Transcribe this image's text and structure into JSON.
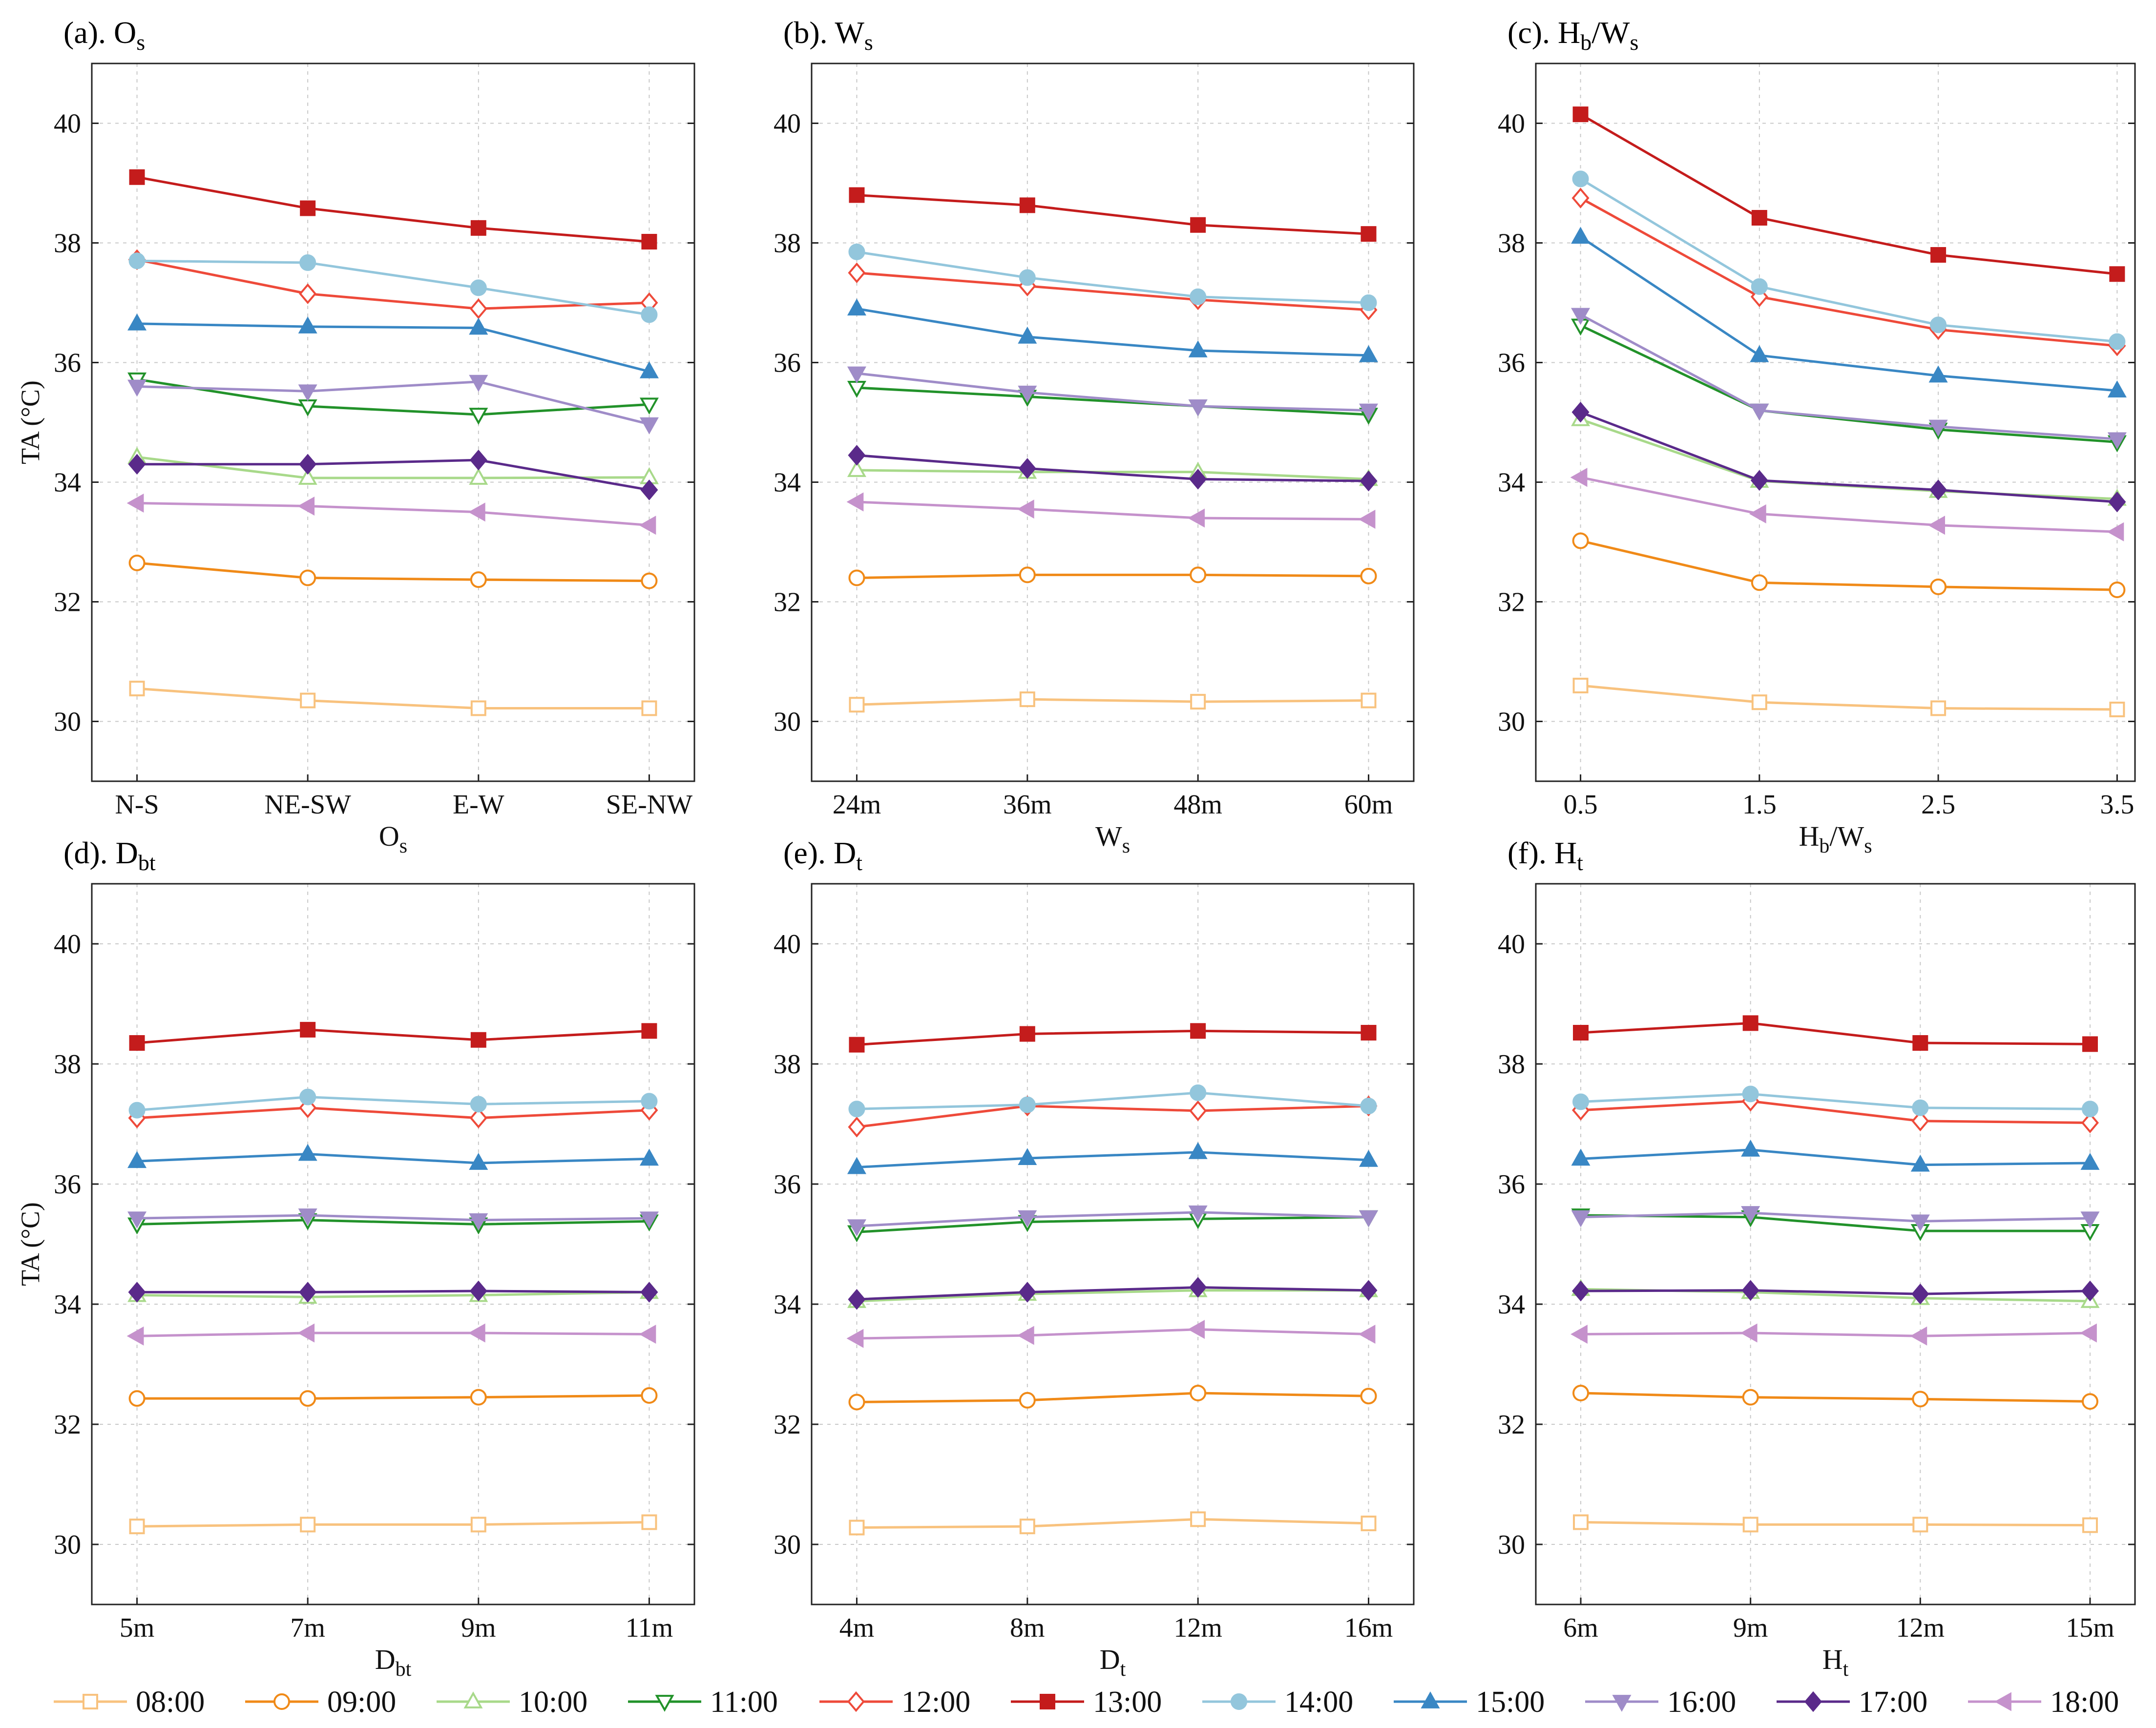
{
  "chart_data": {
    "type": "line",
    "legend_position": "bottom",
    "series_styles": [
      {
        "name": "08:00",
        "color": "#f8c27e",
        "marker": "square",
        "filled": false
      },
      {
        "name": "09:00",
        "color": "#f08a18",
        "marker": "circle",
        "filled": false
      },
      {
        "name": "10:00",
        "color": "#a8d98a",
        "marker": "triangle-up",
        "filled": false
      },
      {
        "name": "11:00",
        "color": "#22922a",
        "marker": "triangle-down",
        "filled": false
      },
      {
        "name": "12:00",
        "color": "#ee4a3a",
        "marker": "diamond",
        "filled": false
      },
      {
        "name": "13:00",
        "color": "#c41c1c",
        "marker": "square",
        "filled": true
      },
      {
        "name": "14:00",
        "color": "#93c6dc",
        "marker": "circle",
        "filled": true
      },
      {
        "name": "15:00",
        "color": "#3987c4",
        "marker": "triangle-up",
        "filled": true
      },
      {
        "name": "16:00",
        "color": "#9f8cc8",
        "marker": "triangle-down",
        "filled": true
      },
      {
        "name": "17:00",
        "color": "#5a2a8a",
        "marker": "diamond",
        "filled": true
      },
      {
        "name": "18:00",
        "color": "#c592cc",
        "marker": "triangle-left",
        "filled": true
      }
    ],
    "panels": [
      {
        "id": "a",
        "title_prefix": "(a). ",
        "title_main": "O",
        "title_sub": "s",
        "xlabel": "O",
        "xlabel_sub": "s",
        "ylabel": "TA (°C)",
        "ylim": [
          29,
          41
        ],
        "yticks": [
          30,
          32,
          34,
          36,
          38,
          40
        ],
        "categories": [
          "N-S",
          "NE-SW",
          "E-W",
          "SE-NW"
        ],
        "series": [
          {
            "name": "08:00",
            "values": [
              30.55,
              30.35,
              30.22,
              30.22
            ]
          },
          {
            "name": "09:00",
            "values": [
              32.65,
              32.4,
              32.37,
              32.35
            ]
          },
          {
            "name": "10:00",
            "values": [
              34.42,
              34.07,
              34.07,
              34.08
            ]
          },
          {
            "name": "11:00",
            "values": [
              35.72,
              35.27,
              35.13,
              35.3
            ]
          },
          {
            "name": "12:00",
            "values": [
              37.72,
              37.15,
              36.9,
              37.0
            ]
          },
          {
            "name": "13:00",
            "values": [
              39.1,
              38.58,
              38.25,
              38.02
            ]
          },
          {
            "name": "14:00",
            "values": [
              37.7,
              37.67,
              37.25,
              36.8
            ]
          },
          {
            "name": "15:00",
            "values": [
              36.65,
              36.6,
              36.58,
              35.85
            ]
          },
          {
            "name": "16:00",
            "values": [
              35.6,
              35.52,
              35.68,
              34.97
            ]
          },
          {
            "name": "17:00",
            "values": [
              34.3,
              34.3,
              34.37,
              33.87
            ]
          },
          {
            "name": "18:00",
            "values": [
              33.65,
              33.6,
              33.5,
              33.28
            ]
          }
        ]
      },
      {
        "id": "b",
        "title_prefix": "(b). ",
        "title_main": "W",
        "title_sub": "s",
        "xlabel": "W",
        "xlabel_sub": "s",
        "ylabel": "",
        "ylim": [
          29,
          41
        ],
        "yticks": [
          30,
          32,
          34,
          36,
          38,
          40
        ],
        "categories": [
          "24m",
          "36m",
          "48m",
          "60m"
        ],
        "series": [
          {
            "name": "08:00",
            "values": [
              30.28,
              30.37,
              30.33,
              30.35
            ]
          },
          {
            "name": "09:00",
            "values": [
              32.4,
              32.45,
              32.45,
              32.43
            ]
          },
          {
            "name": "10:00",
            "values": [
              34.2,
              34.17,
              34.17,
              34.05
            ]
          },
          {
            "name": "11:00",
            "values": [
              35.58,
              35.43,
              35.27,
              35.13
            ]
          },
          {
            "name": "12:00",
            "values": [
              37.5,
              37.28,
              37.05,
              36.88
            ]
          },
          {
            "name": "13:00",
            "values": [
              38.8,
              38.63,
              38.3,
              38.15
            ]
          },
          {
            "name": "14:00",
            "values": [
              37.85,
              37.42,
              37.1,
              37.0
            ]
          },
          {
            "name": "15:00",
            "values": [
              36.9,
              36.43,
              36.2,
              36.12
            ]
          },
          {
            "name": "16:00",
            "values": [
              35.82,
              35.5,
              35.27,
              35.2
            ]
          },
          {
            "name": "17:00",
            "values": [
              34.45,
              34.23,
              34.05,
              34.02
            ]
          },
          {
            "name": "18:00",
            "values": [
              33.67,
              33.55,
              33.4,
              33.38
            ]
          }
        ]
      },
      {
        "id": "c",
        "title_prefix": "(c). ",
        "title_main": "H",
        "title_sub": "b",
        "title_rest": "/W",
        "title_sub2": "s",
        "xlabel": "H",
        "xlabel_sub": "b",
        "xlabel_rest": "/W",
        "xlabel_sub2": "s",
        "ylabel": "",
        "ylim": [
          29,
          41
        ],
        "yticks": [
          30,
          32,
          34,
          36,
          38,
          40
        ],
        "x": [
          0.5,
          1.5,
          2.5,
          3.5
        ],
        "xlim": [
          0.25,
          3.6
        ],
        "categories": [
          "0.5",
          "1.5",
          "2.5",
          "3.5"
        ],
        "series": [
          {
            "name": "08:00",
            "values": [
              30.6,
              30.32,
              30.22,
              30.2
            ]
          },
          {
            "name": "09:00",
            "values": [
              33.02,
              32.32,
              32.25,
              32.2
            ]
          },
          {
            "name": "10:00",
            "values": [
              35.05,
              34.02,
              33.85,
              33.72
            ]
          },
          {
            "name": "11:00",
            "values": [
              36.62,
              35.2,
              34.88,
              34.67
            ]
          },
          {
            "name": "12:00",
            "values": [
              38.75,
              37.1,
              36.55,
              36.28
            ]
          },
          {
            "name": "13:00",
            "values": [
              40.15,
              38.42,
              37.8,
              37.48
            ]
          },
          {
            "name": "14:00",
            "values": [
              39.07,
              37.27,
              36.63,
              36.35
            ]
          },
          {
            "name": "15:00",
            "values": [
              38.1,
              36.12,
              35.78,
              35.53
            ]
          },
          {
            "name": "16:00",
            "values": [
              36.8,
              35.2,
              34.93,
              34.72
            ]
          },
          {
            "name": "17:00",
            "values": [
              35.17,
              34.03,
              33.87,
              33.67
            ]
          },
          {
            "name": "18:00",
            "values": [
              34.08,
              33.47,
              33.28,
              33.17
            ]
          }
        ]
      },
      {
        "id": "d",
        "title_prefix": "(d). ",
        "title_main": "D",
        "title_sub": "bt",
        "xlabel": "D",
        "xlabel_sub": "bt",
        "ylabel": "TA (°C)",
        "ylim": [
          29,
          41
        ],
        "yticks": [
          30,
          32,
          34,
          36,
          38,
          40
        ],
        "categories": [
          "5m",
          "7m",
          "9m",
          "11m"
        ],
        "series": [
          {
            "name": "08:00",
            "values": [
              30.3,
              30.33,
              30.33,
              30.37
            ]
          },
          {
            "name": "09:00",
            "values": [
              32.43,
              32.43,
              32.45,
              32.48
            ]
          },
          {
            "name": "10:00",
            "values": [
              34.15,
              34.12,
              34.15,
              34.2
            ]
          },
          {
            "name": "11:00",
            "values": [
              35.33,
              35.4,
              35.33,
              35.38
            ]
          },
          {
            "name": "12:00",
            "values": [
              37.1,
              37.27,
              37.1,
              37.23
            ]
          },
          {
            "name": "13:00",
            "values": [
              38.35,
              38.57,
              38.4,
              38.55
            ]
          },
          {
            "name": "14:00",
            "values": [
              37.23,
              37.45,
              37.33,
              37.38
            ]
          },
          {
            "name": "15:00",
            "values": [
              36.38,
              36.5,
              36.35,
              36.42
            ]
          },
          {
            "name": "16:00",
            "values": [
              35.43,
              35.48,
              35.4,
              35.43
            ]
          },
          {
            "name": "17:00",
            "values": [
              34.2,
              34.2,
              34.22,
              34.2
            ]
          },
          {
            "name": "18:00",
            "values": [
              33.47,
              33.52,
              33.52,
              33.5
            ]
          }
        ]
      },
      {
        "id": "e",
        "title_prefix": "(e). ",
        "title_main": "D",
        "title_sub": "t",
        "xlabel": "D",
        "xlabel_sub": "t",
        "ylabel": "",
        "ylim": [
          29,
          41
        ],
        "yticks": [
          30,
          32,
          34,
          36,
          38,
          40
        ],
        "categories": [
          "4m",
          "8m",
          "12m",
          "16m"
        ],
        "series": [
          {
            "name": "08:00",
            "values": [
              30.28,
              30.3,
              30.42,
              30.35
            ]
          },
          {
            "name": "09:00",
            "values": [
              32.37,
              32.4,
              32.52,
              32.47
            ]
          },
          {
            "name": "10:00",
            "values": [
              34.05,
              34.17,
              34.23,
              34.23
            ]
          },
          {
            "name": "11:00",
            "values": [
              35.2,
              35.37,
              35.42,
              35.45
            ]
          },
          {
            "name": "12:00",
            "values": [
              36.95,
              37.3,
              37.22,
              37.3
            ]
          },
          {
            "name": "13:00",
            "values": [
              38.32,
              38.5,
              38.55,
              38.52
            ]
          },
          {
            "name": "14:00",
            "values": [
              37.25,
              37.32,
              37.52,
              37.3
            ]
          },
          {
            "name": "15:00",
            "values": [
              36.28,
              36.43,
              36.53,
              36.4
            ]
          },
          {
            "name": "16:00",
            "values": [
              35.3,
              35.45,
              35.53,
              35.45
            ]
          },
          {
            "name": "17:00",
            "values": [
              34.08,
              34.2,
              34.28,
              34.23
            ]
          },
          {
            "name": "18:00",
            "values": [
              33.43,
              33.48,
              33.58,
              33.5
            ]
          }
        ]
      },
      {
        "id": "f",
        "title_prefix": "(f). ",
        "title_main": "H",
        "title_sub": "t",
        "xlabel": "H",
        "xlabel_sub": "t",
        "ylabel": "",
        "ylim": [
          29,
          41
        ],
        "yticks": [
          30,
          32,
          34,
          36,
          38,
          40
        ],
        "categories": [
          "6m",
          "9m",
          "12m",
          "15m"
        ],
        "series": [
          {
            "name": "08:00",
            "values": [
              30.37,
              30.33,
              30.33,
              30.32
            ]
          },
          {
            "name": "09:00",
            "values": [
              32.52,
              32.45,
              32.42,
              32.38
            ]
          },
          {
            "name": "10:00",
            "values": [
              34.25,
              34.2,
              34.1,
              34.05
            ]
          },
          {
            "name": "11:00",
            "values": [
              35.48,
              35.45,
              35.22,
              35.22
            ]
          },
          {
            "name": "12:00",
            "values": [
              37.23,
              37.38,
              37.05,
              37.02
            ]
          },
          {
            "name": "13:00",
            "values": [
              38.52,
              38.68,
              38.35,
              38.33
            ]
          },
          {
            "name": "14:00",
            "values": [
              37.37,
              37.5,
              37.27,
              37.25
            ]
          },
          {
            "name": "15:00",
            "values": [
              36.42,
              36.57,
              36.32,
              36.35
            ]
          },
          {
            "name": "16:00",
            "values": [
              35.45,
              35.52,
              35.38,
              35.43
            ]
          },
          {
            "name": "17:00",
            "values": [
              34.22,
              34.23,
              34.17,
              34.22
            ]
          },
          {
            "name": "18:00",
            "values": [
              33.5,
              33.52,
              33.47,
              33.52
            ]
          }
        ]
      }
    ]
  }
}
